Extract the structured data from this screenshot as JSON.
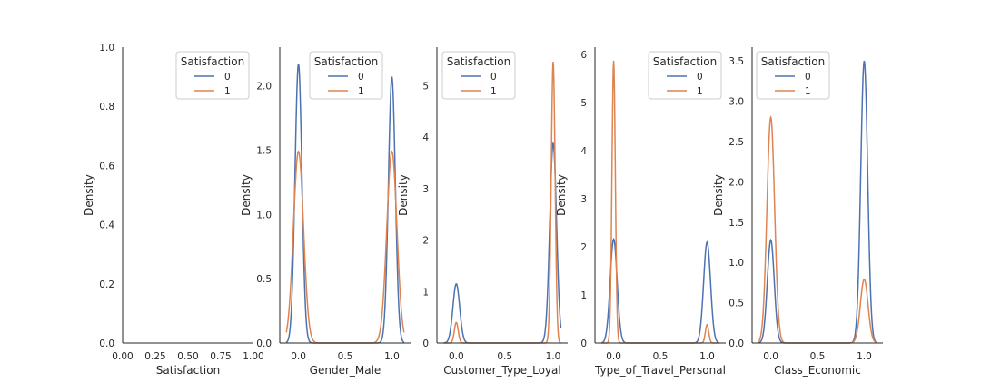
{
  "chart_data": [
    {
      "type": "line",
      "xlabel": "Satisfaction",
      "ylabel": "Density",
      "xlim": [
        0,
        1
      ],
      "ylim": [
        0,
        1
      ],
      "xticks": [
        "0.00",
        "0.25",
        "0.50",
        "0.75",
        "1.00"
      ],
      "xtick_values": [
        0,
        0.25,
        0.5,
        0.75,
        1
      ],
      "yticks": [
        "0.0",
        "0.2",
        "0.4",
        "0.6",
        "0.8",
        "1.0"
      ],
      "ytick_values": [
        0,
        0.2,
        0.4,
        0.6,
        0.8,
        1.0
      ],
      "legend": {
        "title": "Satisfaction",
        "placement": "top-right",
        "entries": [
          "0",
          "1"
        ]
      },
      "series": [],
      "grid": false
    },
    {
      "type": "line",
      "xlabel": "Gender_Male",
      "ylabel": "Density",
      "xlim": [
        -0.2,
        1.2
      ],
      "ylim": [
        0,
        2.3
      ],
      "xticks": [
        "0.0",
        "0.5",
        "1.0"
      ],
      "xtick_values": [
        0,
        0.5,
        1
      ],
      "yticks": [
        "0.0",
        "0.5",
        "1.0",
        "1.5",
        "2.0"
      ],
      "ytick_values": [
        0,
        0.5,
        1,
        1.5,
        2
      ],
      "legend": {
        "title": "Satisfaction",
        "placement": "top-center",
        "entries": [
          "0",
          "1"
        ]
      },
      "series": [
        {
          "name": "0",
          "peaks": [
            {
              "x": 0,
              "y": 2.17
            },
            {
              "x": 1,
              "y": 2.07
            }
          ],
          "sigma": 0.037
        },
        {
          "name": "1",
          "peaks": [
            {
              "x": 0,
              "y": 1.49
            },
            {
              "x": 1,
              "y": 1.49
            }
          ],
          "sigma": 0.054
        }
      ],
      "grid": false
    },
    {
      "type": "line",
      "xlabel": "Customer_Type_Loyal",
      "ylabel": "Density",
      "xlim": [
        -0.2,
        1.15
      ],
      "ylim": [
        0,
        5.75
      ],
      "xticks": [
        "0.0",
        "0.5",
        "1.0"
      ],
      "xtick_values": [
        0,
        0.5,
        1
      ],
      "yticks": [
        "0",
        "1",
        "2",
        "3",
        "4",
        "5"
      ],
      "ytick_values": [
        0,
        1,
        2,
        3,
        4,
        5
      ],
      "legend": {
        "title": "Satisfaction",
        "placement": "top-left",
        "entries": [
          "0",
          "1"
        ]
      },
      "series": [
        {
          "name": "0",
          "peaks": [
            {
              "x": 0,
              "y": 1.15
            },
            {
              "x": 1,
              "y": 3.88
            }
          ],
          "sigma": 0.035
        },
        {
          "name": "1",
          "peaks": [
            {
              "x": 0,
              "y": 0.4
            },
            {
              "x": 1,
              "y": 5.47
            }
          ],
          "sigma": 0.02
        }
      ],
      "grid": false
    },
    {
      "type": "line",
      "xlabel": "Type_of_Travel_Personal",
      "ylabel": "Density",
      "xlim": [
        -0.2,
        1.2
      ],
      "ylim": [
        0,
        6.15
      ],
      "xticks": [
        "0.0",
        "0.5",
        "1.0"
      ],
      "xtick_values": [
        0,
        0.5,
        1
      ],
      "yticks": [
        "0",
        "1",
        "2",
        "3",
        "4",
        "5",
        "6"
      ],
      "ytick_values": [
        0,
        1,
        2,
        3,
        4,
        5,
        6
      ],
      "legend": {
        "title": "Satisfaction",
        "placement": "top-right",
        "entries": [
          "0",
          "1"
        ]
      },
      "series": [
        {
          "name": "0",
          "peaks": [
            {
              "x": 0,
              "y": 2.16
            },
            {
              "x": 1,
              "y": 2.1
            }
          ],
          "sigma": 0.037
        },
        {
          "name": "1",
          "peaks": [
            {
              "x": 0,
              "y": 5.87
            },
            {
              "x": 1,
              "y": 0.38
            }
          ],
          "sigma": 0.018
        }
      ],
      "grid": false
    },
    {
      "type": "line",
      "xlabel": "Class_Economic",
      "ylabel": "Density",
      "xlim": [
        -0.2,
        1.2
      ],
      "ylim": [
        0,
        3.67
      ],
      "xticks": [
        "0.0",
        "0.5",
        "1.0"
      ],
      "xtick_values": [
        0,
        0.5,
        1
      ],
      "yticks": [
        "0.0",
        "0.5",
        "1.0",
        "1.5",
        "2.0",
        "2.5",
        "3.0",
        "3.5"
      ],
      "ytick_values": [
        0,
        0.5,
        1,
        1.5,
        2,
        2.5,
        3,
        3.5
      ],
      "legend": {
        "title": "Satisfaction",
        "placement": "top-left",
        "entries": [
          "0",
          "1"
        ]
      },
      "series": [
        {
          "name": "0",
          "peaks": [
            {
              "x": 0,
              "y": 1.28
            },
            {
              "x": 1,
              "y": 3.5
            }
          ],
          "sigma": 0.037
        },
        {
          "name": "1",
          "peaks": [
            {
              "x": 0,
              "y": 2.8
            },
            {
              "x": 1,
              "y": 0.79
            }
          ],
          "sigma": 0.041
        }
      ],
      "grid": false
    }
  ],
  "colors": {
    "series_0": "#4c72b0",
    "series_1": "#dd8452",
    "axis": "#262626",
    "text": "#262626"
  }
}
